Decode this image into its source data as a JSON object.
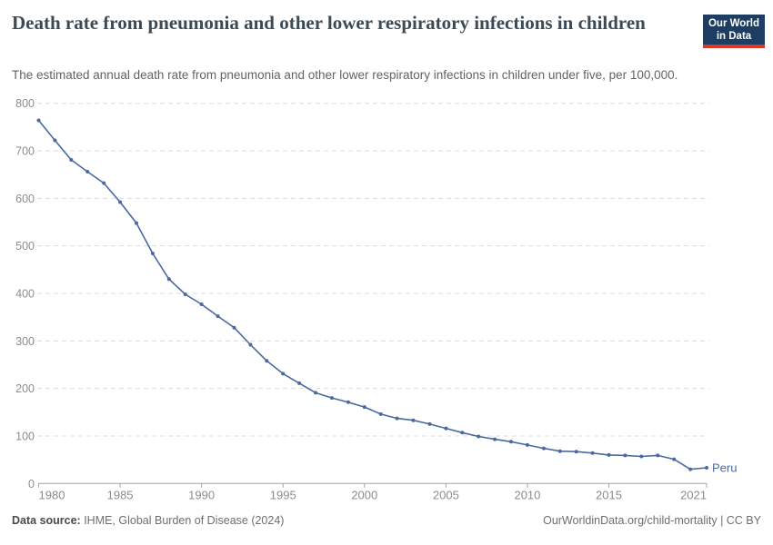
{
  "header": {
    "title": "Death rate from pneumonia and other lower respiratory infections in children",
    "subtitle": "The estimated annual death rate from pneumonia and other lower respiratory infections in children under five, per 100,000.",
    "logo": {
      "line1": "Our World",
      "line2": "in Data",
      "bg_color": "#1d3d63",
      "accent_color": "#d93a2b"
    }
  },
  "chart_data": {
    "type": "line",
    "title": "Death rate from pneumonia and other lower respiratory infections in children",
    "subtitle": "The estimated annual death rate from pneumonia and other lower respiratory infections in children under five, per 100,000.",
    "xlabel": "",
    "ylabel": "",
    "xlim": [
      1980,
      2021
    ],
    "ylim": [
      0,
      800
    ],
    "y_ticks": [
      0,
      100,
      200,
      300,
      400,
      500,
      600,
      700,
      800
    ],
    "x_ticks": [
      1980,
      1985,
      1990,
      1995,
      2000,
      2005,
      2010,
      2015,
      2021
    ],
    "grid": "horizontal-dashed",
    "grid_color": "#dcdcdc",
    "axis_color": "#a3a3a3",
    "tick_label_color": "#8c8c8c",
    "x": [
      1980,
      1981,
      1982,
      1983,
      1984,
      1985,
      1986,
      1987,
      1988,
      1989,
      1990,
      1991,
      1992,
      1993,
      1994,
      1995,
      1996,
      1997,
      1998,
      1999,
      2000,
      2001,
      2002,
      2003,
      2004,
      2005,
      2006,
      2007,
      2008,
      2009,
      2010,
      2011,
      2012,
      2013,
      2014,
      2015,
      2016,
      2017,
      2018,
      2019,
      2020,
      2021
    ],
    "series": [
      {
        "name": "Peru",
        "color": "#4a69a0",
        "values": [
          764,
          722,
          681,
          656,
          632,
          592,
          548,
          484,
          430,
          398,
          377,
          352,
          328,
          292,
          258,
          231,
          211,
          191,
          180,
          171,
          161,
          146,
          137,
          133,
          125,
          116,
          107,
          99,
          93,
          88,
          81,
          74,
          68,
          67,
          64,
          60,
          59,
          57,
          59,
          51,
          30,
          33
        ]
      }
    ],
    "end_label": "Peru",
    "legend_position": "end-of-line"
  },
  "footer": {
    "data_source_label": "Data source:",
    "data_source_value": " IHME, Global Burden of Disease (2024)",
    "attribution": "OurWorldinData.org/child-mortality | CC BY"
  }
}
